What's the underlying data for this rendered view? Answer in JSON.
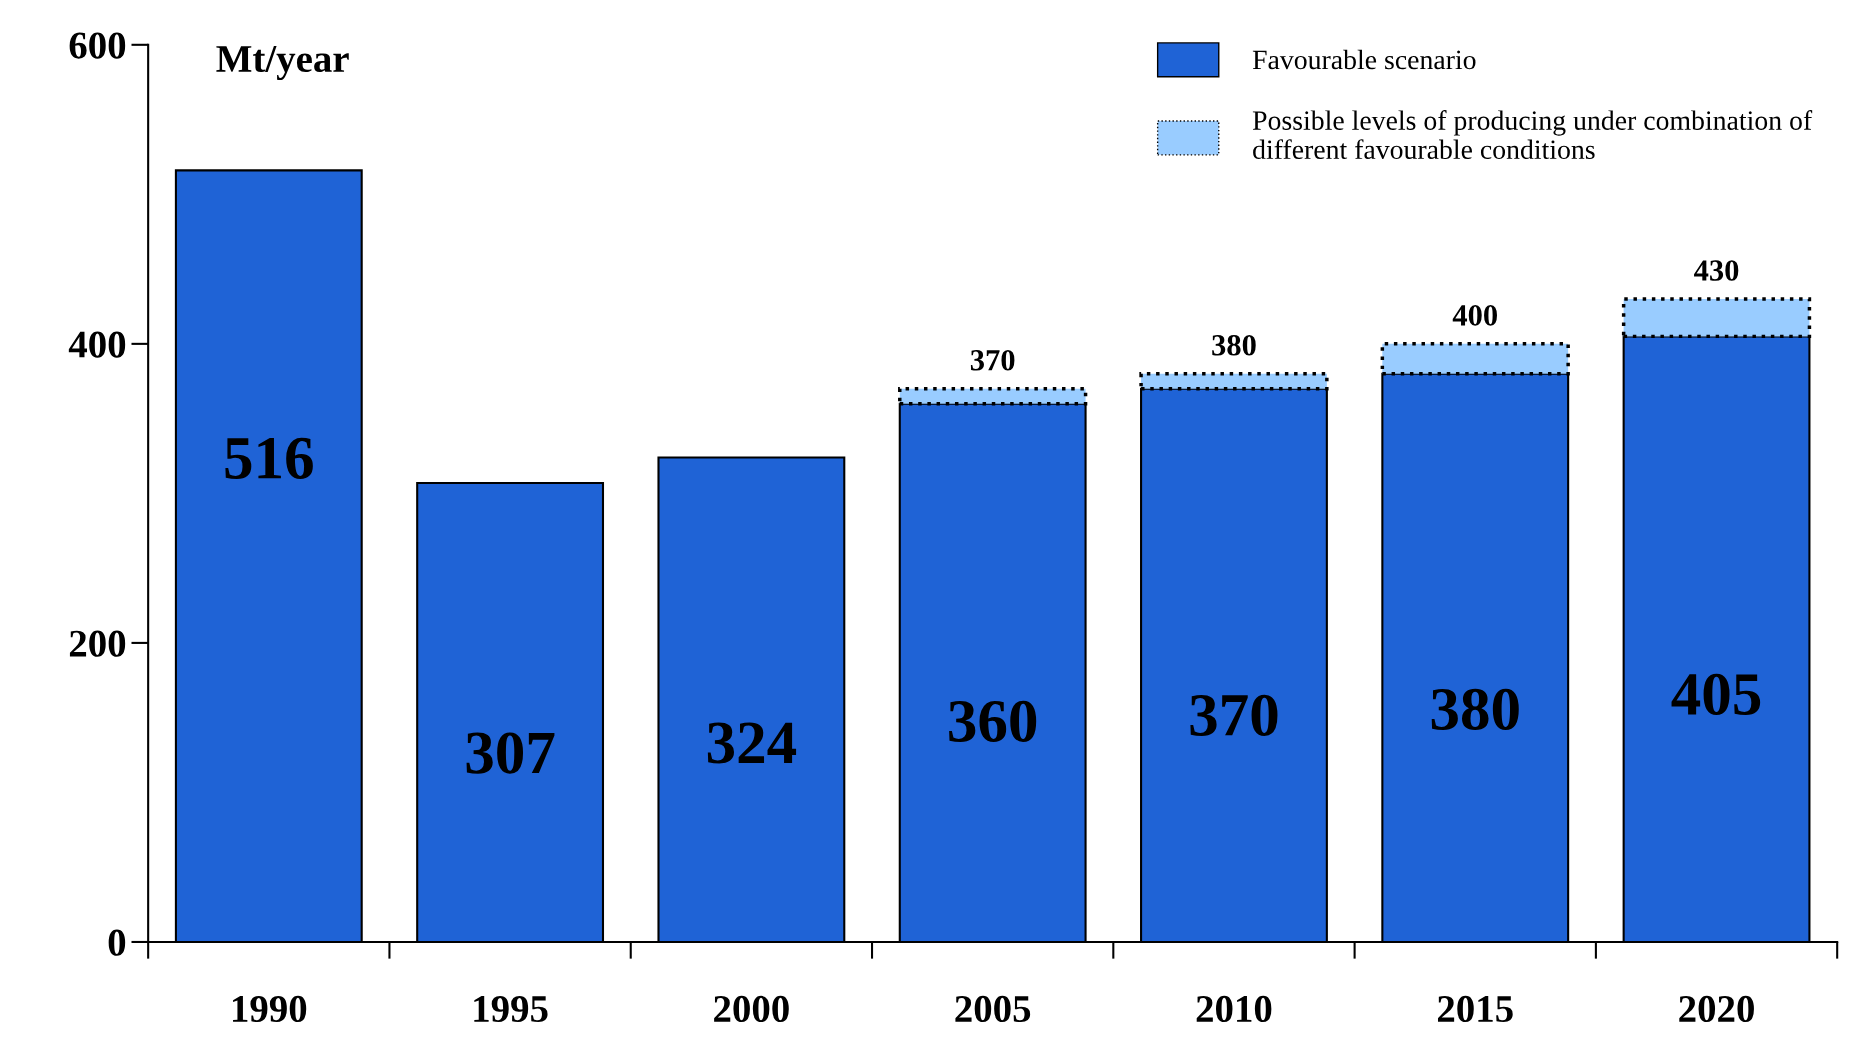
{
  "chart_data": {
    "type": "bar",
    "stacked": true,
    "ylabel": "Mt/year",
    "categories": [
      "1990",
      "1995",
      "2000",
      "2005",
      "2010",
      "2015",
      "2020"
    ],
    "series": [
      {
        "name": "Favourable scenario",
        "color": "#1f63d6",
        "values": [
          516,
          307,
          324,
          360,
          370,
          380,
          405
        ],
        "value_labels": [
          "516",
          "307",
          "324",
          "360",
          "370",
          "380",
          "405"
        ]
      },
      {
        "name": "Possible levels of producing under combination of\ndifferent favourable conditions",
        "color": "#99ccff",
        "line_style": "dotted",
        "values": [
          null,
          null,
          null,
          10,
          10,
          20,
          25
        ]
      }
    ],
    "totals": [
      null,
      null,
      null,
      "370",
      "380",
      "400",
      "430"
    ],
    "ylim": [
      0,
      600
    ],
    "yticks": [
      0,
      200,
      400,
      600
    ],
    "grid": false,
    "legend": "top right"
  }
}
